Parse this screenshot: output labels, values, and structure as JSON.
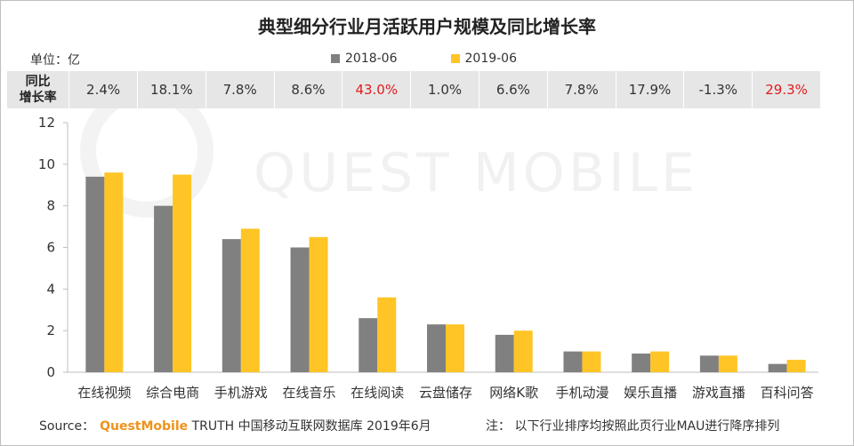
{
  "title": "典型细分行业月活跃用户规模及同比增长率",
  "unit": "单位：亿",
  "watermark": "QUEST MOBILE",
  "growth": {
    "header_line1": "同比",
    "header_line2": "增长率",
    "values": [
      "2.4%",
      "18.1%",
      "7.8%",
      "8.6%",
      "43.0%",
      "1.0%",
      "6.6%",
      "7.8%",
      "17.9%",
      "-1.3%",
      "29.3%"
    ],
    "highlight": [
      false,
      false,
      false,
      false,
      true,
      false,
      false,
      false,
      false,
      false,
      true
    ]
  },
  "footer": {
    "source_prefix": "Source：",
    "brand": "QuestMobile",
    "source_rest": " TRUTH 中国移动互联网数据库 2019年6月",
    "note": "注：  以下行业排序均按照此页行业MAU进行降序排列"
  },
  "colors": {
    "series_2018": "#808080",
    "series_2019": "#ffc526",
    "highlight_text": "#e21b1b",
    "brand": "#f0921c"
  },
  "chart_data": {
    "type": "bar",
    "title": "典型细分行业月活跃用户规模及同比增长率",
    "categories": [
      "在线视频",
      "综合电商",
      "手机游戏",
      "在线音乐",
      "在线阅读",
      "云盘储存",
      "网络K歌",
      "手机动漫",
      "娱乐直播",
      "游戏直播",
      "百科问答"
    ],
    "series": [
      {
        "name": "2018-06",
        "values": [
          9.4,
          8.0,
          6.4,
          6.0,
          2.6,
          2.3,
          1.8,
          1.0,
          0.9,
          0.8,
          0.4
        ]
      },
      {
        "name": "2019-06",
        "values": [
          9.6,
          9.5,
          6.9,
          6.5,
          3.6,
          2.3,
          2.0,
          1.0,
          1.0,
          0.8,
          0.6
        ]
      }
    ],
    "ylim": [
      0,
      12
    ],
    "yticks": [
      0,
      2,
      4,
      6,
      8,
      10,
      12
    ],
    "grid": false,
    "legend": "top-center"
  }
}
